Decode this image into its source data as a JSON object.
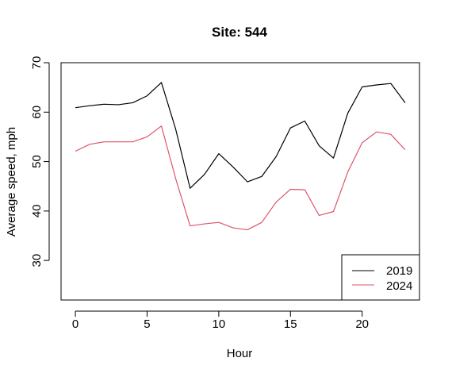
{
  "chart_data": {
    "type": "line",
    "title": "Site: 544",
    "xlabel": "Hour",
    "ylabel": "Average speed, mph",
    "xlim": [
      -1,
      24
    ],
    "ylim": [
      22,
      70
    ],
    "xticks": [
      0,
      5,
      10,
      15,
      20
    ],
    "yticks": [
      30,
      40,
      50,
      60,
      70
    ],
    "grid": false,
    "legend_position": "bottom-right",
    "x": [
      0,
      1,
      2,
      3,
      4,
      5,
      6,
      7,
      8,
      9,
      10,
      11,
      12,
      13,
      14,
      15,
      16,
      17,
      18,
      19,
      20,
      21,
      22,
      23
    ],
    "series": [
      {
        "name": "2019",
        "color": "#000000",
        "values": [
          60.9,
          61.3,
          61.6,
          61.5,
          61.9,
          63.3,
          66.0,
          56.5,
          44.6,
          47.4,
          51.6,
          48.9,
          45.9,
          47.0,
          51.0,
          56.8,
          58.2,
          53.2,
          50.7,
          59.8,
          65.1,
          65.5,
          65.8,
          61.9
        ]
      },
      {
        "name": "2024",
        "color": "#DF536B",
        "values": [
          52.1,
          53.5,
          54.0,
          54.0,
          54.0,
          55.0,
          57.2,
          46.5,
          37.0,
          37.4,
          37.7,
          36.6,
          36.2,
          37.7,
          41.8,
          44.4,
          44.3,
          39.1,
          39.9,
          47.9,
          53.8,
          56.0,
          55.5,
          52.4
        ]
      }
    ]
  }
}
